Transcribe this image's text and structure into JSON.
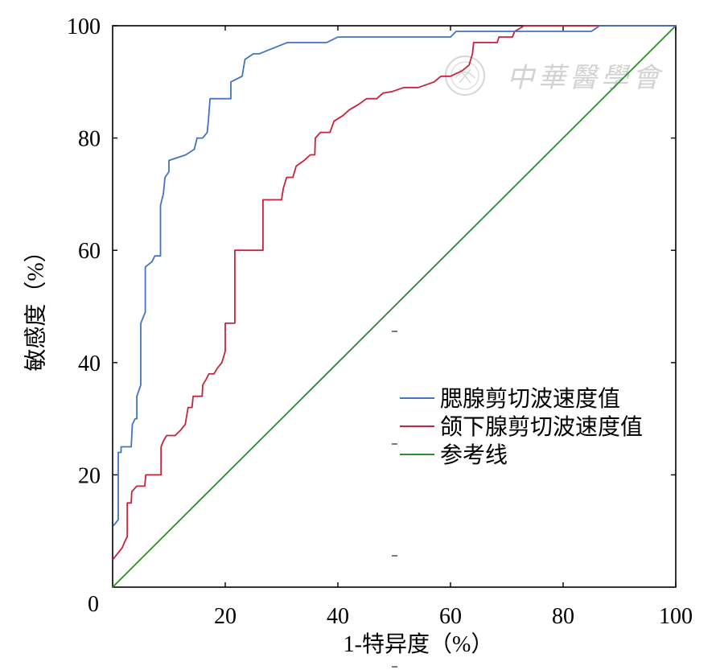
{
  "chart_data": {
    "type": "line",
    "title": "",
    "xlabel": "1-特异度（%）",
    "ylabel": "敏感度（%）",
    "xlim": [
      0,
      100
    ],
    "ylim": [
      0,
      100
    ],
    "x_ticks": [
      20,
      40,
      60,
      80,
      100
    ],
    "y_ticks": [
      20,
      40,
      60,
      80,
      100
    ],
    "origin_label": "0",
    "grid": false,
    "legend_position": "center-right",
    "series": [
      {
        "name": "腮腺剪切波速度值",
        "color": "#4472C4",
        "points": [
          [
            0.2,
            11
          ],
          [
            1,
            12
          ],
          [
            1,
            24
          ],
          [
            1.5,
            24
          ],
          [
            1.5,
            25
          ],
          [
            3.3,
            25
          ],
          [
            3.5,
            29
          ],
          [
            4,
            30
          ],
          [
            4.3,
            30
          ],
          [
            4.3,
            34
          ],
          [
            5,
            36
          ],
          [
            5,
            47
          ],
          [
            5.8,
            49
          ],
          [
            5.8,
            57
          ],
          [
            7,
            58
          ],
          [
            7.5,
            59
          ],
          [
            8.5,
            59
          ],
          [
            8.5,
            68
          ],
          [
            9,
            70
          ],
          [
            9.3,
            73
          ],
          [
            10,
            74
          ],
          [
            10,
            76
          ],
          [
            11.5,
            76.5
          ],
          [
            13,
            77
          ],
          [
            14.5,
            78
          ],
          [
            15,
            80
          ],
          [
            16,
            80
          ],
          [
            16.8,
            81
          ],
          [
            17,
            83
          ],
          [
            17.3,
            87
          ],
          [
            21,
            87
          ],
          [
            21,
            90
          ],
          [
            23,
            91
          ],
          [
            23.5,
            94
          ],
          [
            25,
            95
          ],
          [
            26,
            95
          ],
          [
            28.5,
            96
          ],
          [
            31,
            97
          ],
          [
            38,
            97
          ],
          [
            40,
            98
          ],
          [
            60,
            98
          ],
          [
            61,
            99
          ],
          [
            85,
            99
          ],
          [
            86.5,
            100
          ],
          [
            100,
            100
          ]
        ]
      },
      {
        "name": "颌下腺剪切波速度值",
        "color": "#C8233A",
        "points": [
          [
            0.1,
            5
          ],
          [
            0.9,
            6
          ],
          [
            1.7,
            7
          ],
          [
            2.1,
            8
          ],
          [
            2.6,
            9
          ],
          [
            2.6,
            15
          ],
          [
            3.3,
            15
          ],
          [
            3.4,
            17
          ],
          [
            4.3,
            18
          ],
          [
            5.7,
            18
          ],
          [
            5.9,
            20
          ],
          [
            8.6,
            20
          ],
          [
            8.6,
            25
          ],
          [
            9,
            26
          ],
          [
            9.6,
            27
          ],
          [
            11.1,
            27
          ],
          [
            12.1,
            28
          ],
          [
            12.9,
            29
          ],
          [
            13.4,
            32
          ],
          [
            14.1,
            32
          ],
          [
            14.3,
            34
          ],
          [
            15.9,
            34
          ],
          [
            16,
            36
          ],
          [
            16.6,
            37
          ],
          [
            17.1,
            38
          ],
          [
            18,
            38
          ],
          [
            18.6,
            39
          ],
          [
            19.4,
            40
          ],
          [
            20,
            42
          ],
          [
            20,
            47
          ],
          [
            21.7,
            47
          ],
          [
            21.7,
            60
          ],
          [
            26.7,
            60
          ],
          [
            26.7,
            69
          ],
          [
            30,
            69
          ],
          [
            30.3,
            71
          ],
          [
            30.9,
            73
          ],
          [
            32,
            73
          ],
          [
            32.6,
            75
          ],
          [
            34,
            76
          ],
          [
            35.1,
            77
          ],
          [
            35.9,
            77
          ],
          [
            36,
            80
          ],
          [
            36.9,
            81
          ],
          [
            38.6,
            81
          ],
          [
            39.3,
            83
          ],
          [
            40.9,
            84
          ],
          [
            42,
            85
          ],
          [
            43.7,
            86
          ],
          [
            45.1,
            87
          ],
          [
            46.9,
            87
          ],
          [
            48,
            88
          ],
          [
            49.7,
            88.3
          ],
          [
            51.7,
            89
          ],
          [
            54.3,
            89
          ],
          [
            57.1,
            90
          ],
          [
            58.3,
            91
          ],
          [
            60,
            91
          ],
          [
            62.1,
            92
          ],
          [
            63.3,
            93
          ],
          [
            63.9,
            95
          ],
          [
            64.1,
            97
          ],
          [
            68.3,
            97
          ],
          [
            68.6,
            98
          ],
          [
            71,
            98
          ],
          [
            71.4,
            99
          ],
          [
            73.1,
            100
          ],
          [
            100,
            100
          ]
        ]
      },
      {
        "name": "参考线",
        "color": "#2E8B2E",
        "points": [
          [
            0,
            0
          ],
          [
            100,
            100
          ]
        ]
      }
    ]
  },
  "watermark": "中華醫學會"
}
